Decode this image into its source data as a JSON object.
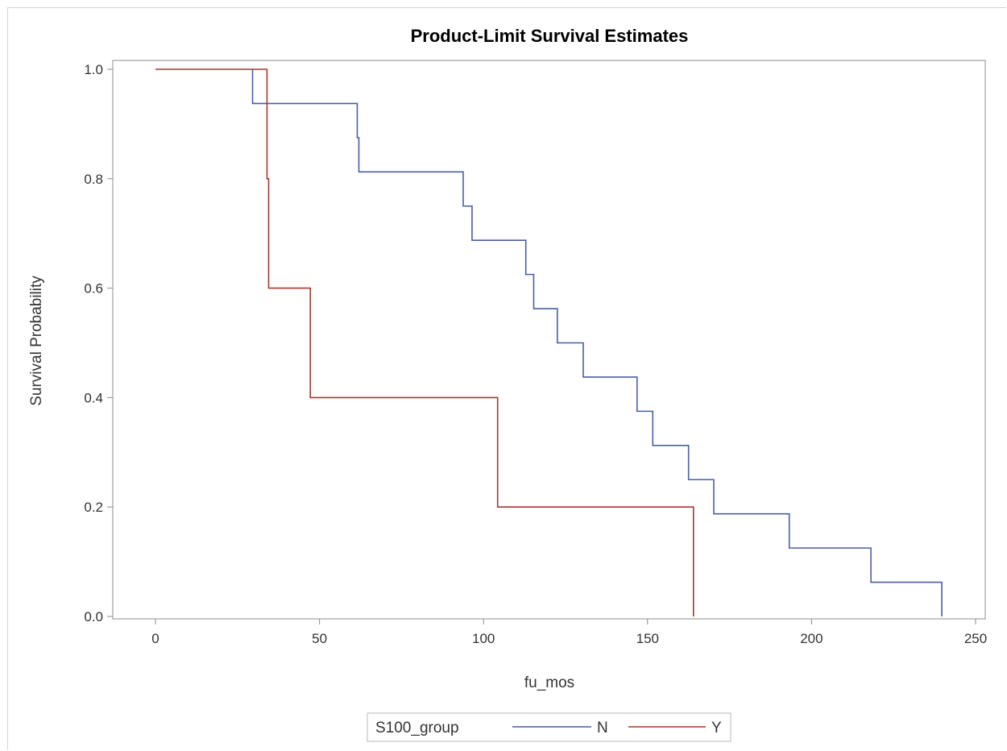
{
  "chart_data": {
    "type": "line",
    "title": "Product-Limit Survival Estimates",
    "xlabel": "fu_mos",
    "ylabel": "Survival Probability",
    "xlim": [
      -12,
      250
    ],
    "ylim": [
      0,
      1.0
    ],
    "xticks": [
      0,
      50,
      100,
      150,
      200,
      250
    ],
    "yticks": [
      0.0,
      0.2,
      0.4,
      0.6,
      0.8,
      1.0
    ],
    "xtick_labels": [
      "0",
      "50",
      "100",
      "150",
      "200",
      "250"
    ],
    "ytick_labels": [
      "0.0",
      "0.2",
      "0.4",
      "0.6",
      "0.8",
      "1.0"
    ],
    "grid": false,
    "legend": {
      "title": "S100_group",
      "placement": "bottom-center"
    },
    "series": [
      {
        "name": "N",
        "color": "#4a5fa5",
        "step": true,
        "points": [
          {
            "x": 29.6,
            "y": 1.0
          },
          {
            "x": 29.6,
            "y": 0.9375
          },
          {
            "x": 61.5,
            "y": 0.9375
          },
          {
            "x": 61.5,
            "y": 0.875
          },
          {
            "x": 62.0,
            "y": 0.875
          },
          {
            "x": 62.0,
            "y": 0.8125
          },
          {
            "x": 93.8,
            "y": 0.8125
          },
          {
            "x": 93.8,
            "y": 0.75
          },
          {
            "x": 96.5,
            "y": 0.75
          },
          {
            "x": 96.5,
            "y": 0.6875
          },
          {
            "x": 112.9,
            "y": 0.6875
          },
          {
            "x": 112.9,
            "y": 0.625
          },
          {
            "x": 115.3,
            "y": 0.625
          },
          {
            "x": 115.3,
            "y": 0.5625
          },
          {
            "x": 122.5,
            "y": 0.5625
          },
          {
            "x": 122.5,
            "y": 0.5
          },
          {
            "x": 130.4,
            "y": 0.5
          },
          {
            "x": 130.4,
            "y": 0.4375
          },
          {
            "x": 146.8,
            "y": 0.4375
          },
          {
            "x": 146.8,
            "y": 0.375
          },
          {
            "x": 151.6,
            "y": 0.375
          },
          {
            "x": 151.6,
            "y": 0.3125
          },
          {
            "x": 162.5,
            "y": 0.3125
          },
          {
            "x": 162.5,
            "y": 0.25
          },
          {
            "x": 170.2,
            "y": 0.25
          },
          {
            "x": 170.2,
            "y": 0.1875
          },
          {
            "x": 193.2,
            "y": 0.1875
          },
          {
            "x": 193.2,
            "y": 0.125
          },
          {
            "x": 218.1,
            "y": 0.125
          },
          {
            "x": 218.1,
            "y": 0.0625
          },
          {
            "x": 239.7,
            "y": 0.0625
          },
          {
            "x": 239.7,
            "y": 0.0
          }
        ]
      },
      {
        "name": "Y",
        "color": "#a33a2d",
        "step": true,
        "points": [
          {
            "x": 0,
            "y": 1.0
          },
          {
            "x": 34.0,
            "y": 1.0
          },
          {
            "x": 34.0,
            "y": 0.8
          },
          {
            "x": 34.5,
            "y": 0.8
          },
          {
            "x": 34.5,
            "y": 0.6
          },
          {
            "x": 47.2,
            "y": 0.6
          },
          {
            "x": 47.2,
            "y": 0.4
          },
          {
            "x": 104.3,
            "y": 0.4
          },
          {
            "x": 104.3,
            "y": 0.2
          },
          {
            "x": 164.0,
            "y": 0.2
          },
          {
            "x": 164.0,
            "y": 0.0
          }
        ]
      }
    ]
  },
  "colors": {
    "axis": "#8c8c8c",
    "text": "#333333",
    "legend_border": "#b8b8b8"
  }
}
